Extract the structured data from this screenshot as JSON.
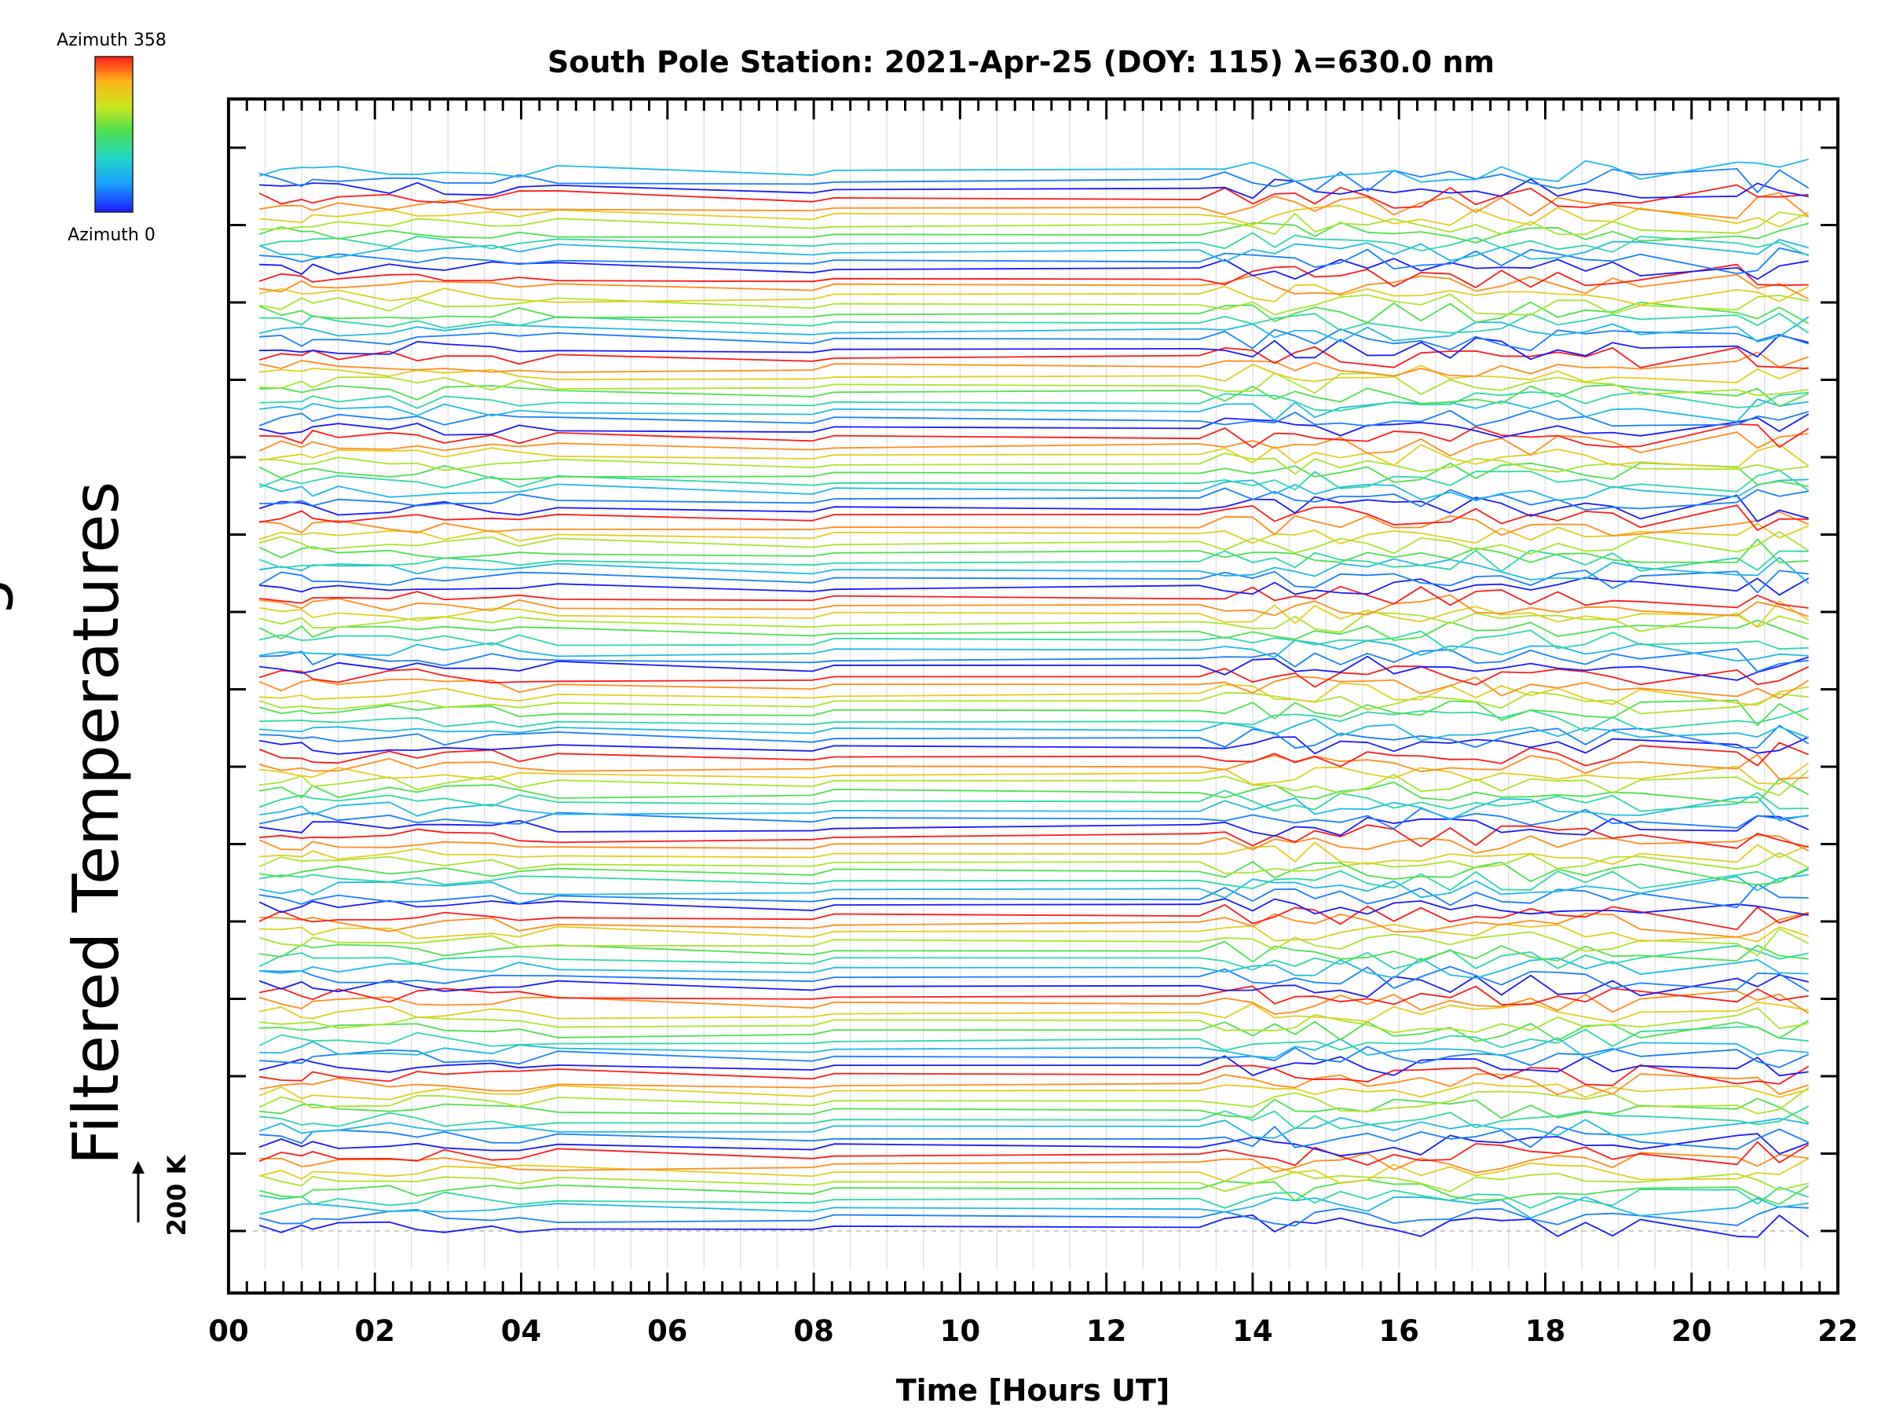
{
  "chart_data": {
    "type": "line",
    "title": "South Pole Station: 2021-Apr-25 (DOY: 115) λ=630.0 nm",
    "xlabel": "Time [Hours UT]",
    "ylabel": "Filtered Temperatures",
    "ylabel_partial": "g",
    "xlim": [
      0,
      22
    ],
    "x_ticks": [
      "00",
      "02",
      "04",
      "06",
      "08",
      "10",
      "12",
      "14",
      "16",
      "18",
      "20",
      "22"
    ],
    "x_grid_step_hours": 0.5,
    "n_offset_ticks": 15,
    "scale_bar": "200 K",
    "colorbar": {
      "top_label": "Azimuth 358",
      "bottom_label": "Azimuth 0",
      "colormap": [
        "#1a1aff",
        "#1aa0ff",
        "#22d6c6",
        "#4fe04f",
        "#c8e61e",
        "#ffb31a",
        "#ff1a1a"
      ]
    },
    "times": [
      0.42,
      0.72,
      1.0,
      1.15,
      1.5,
      2.2,
      2.58,
      2.95,
      3.6,
      3.97,
      4.5,
      7.98,
      8.28,
      13.27,
      13.62,
      14.0,
      14.3,
      14.58,
      14.85,
      15.2,
      15.57,
      15.93,
      16.3,
      16.7,
      17.05,
      17.4,
      17.8,
      18.17,
      18.55,
      18.92,
      19.3,
      20.62,
      20.9,
      21.2,
      21.6
    ],
    "n_azimuth_curves": 120,
    "curves_per_group": 9,
    "azimuth_range": [
      0,
      358
    ]
  }
}
